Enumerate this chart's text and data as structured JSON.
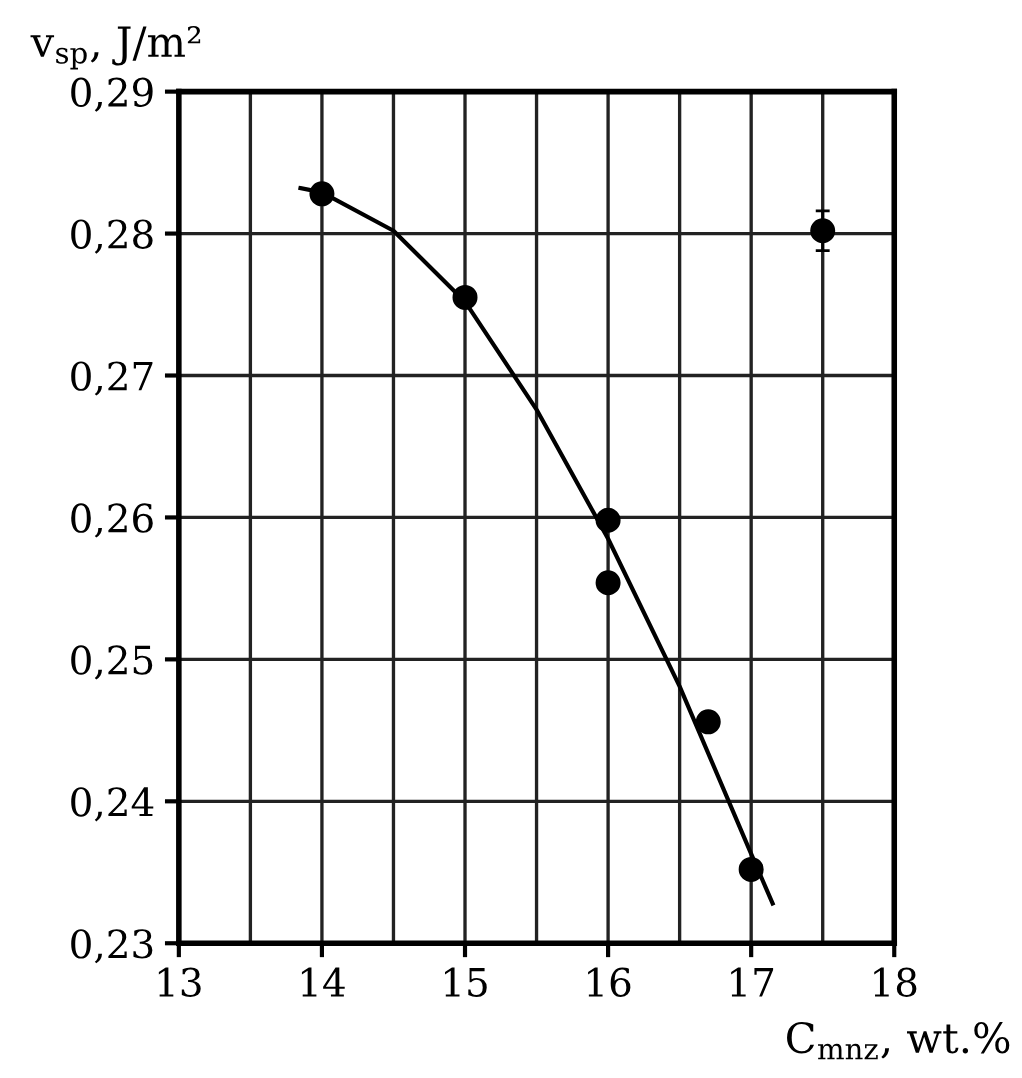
{
  "chart_data": {
    "type": "scatter",
    "xlabel": "C$_{mnz}$, wt.%",
    "ylabel": "v$_{sp}$, J/m²",
    "xlim": [
      13,
      18
    ],
    "ylim": [
      0.23,
      0.29
    ],
    "xticks": [
      13,
      {
        "value": 13.5,
        "label": null
      },
      14,
      {
        "value": 14.5,
        "label": null
      },
      15,
      {
        "value": 15.5,
        "label": null
      },
      16,
      {
        "value": 16.5,
        "label": null
      },
      17,
      {
        "value": 17.5,
        "label": null
      },
      18
    ],
    "yticks": [
      {
        "value": 0.23,
        "label": "0,23"
      },
      {
        "value": 0.24,
        "label": "0,24"
      },
      {
        "value": 0.25,
        "label": "0,25"
      },
      {
        "value": 0.26,
        "label": "0,26"
      },
      {
        "value": 0.27,
        "label": "0,27"
      },
      {
        "value": 0.28,
        "label": "0,28"
      },
      {
        "value": 0.29,
        "label": "0,29"
      }
    ],
    "grid": true,
    "marker": "circle",
    "series": [
      {
        "color": "#000000",
        "x": [
          14,
          15,
          16,
          16,
          16.7,
          17
        ],
        "values": [
          0.2828,
          0.2755,
          0.2598,
          0.2554,
          0.2456,
          0.2352
        ]
      },
      {
        "color": "#000000",
        "x": [
          17.5
        ],
        "values": [
          0.2802
        ],
        "errors": [
          0.0014
        ]
      },
      {
        "type": "line",
        "color": "#000000",
        "marker": "none",
        "x": [
          13.85,
          14,
          14.5,
          15,
          15.5,
          16,
          16.5,
          17,
          17.15
        ],
        "values": [
          0.2832,
          0.2829,
          0.2802,
          0.2752,
          0.2676,
          0.2585,
          0.2481,
          0.2363,
          0.2328
        ]
      }
    ]
  }
}
